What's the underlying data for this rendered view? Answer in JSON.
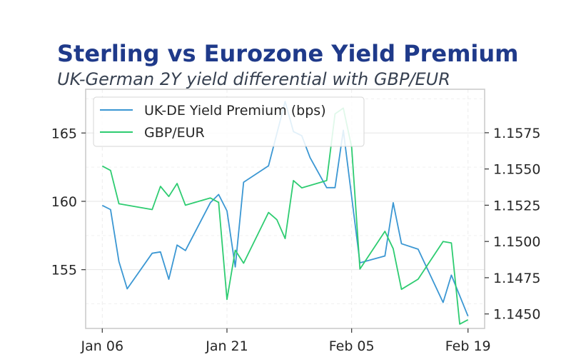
{
  "chart_data": {
    "type": "line",
    "title": "Sterling vs Eurozone Yield Premium",
    "subtitle": "UK-German 2Y yield differential with GBP/EUR",
    "x_tick_labels": [
      "Jan 06",
      "Jan 21",
      "Feb 05",
      "Feb 19"
    ],
    "x_tick_days": [
      0,
      15,
      30,
      44
    ],
    "x_range_days": [
      -2,
      46
    ],
    "y_left": {
      "range": [
        150.7,
        168.2
      ],
      "ticks": [
        155,
        160,
        165
      ]
    },
    "y_right": {
      "range": [
        1.144,
        1.1605
      ],
      "ticks": [
        "1.1450",
        "1.1475",
        "1.1500",
        "1.1525",
        "1.1550",
        "1.1575"
      ]
    },
    "grid": true,
    "legend_position": "top-left",
    "series": [
      {
        "name": "UK-DE Yield Premium (bps)",
        "axis": "left",
        "color": "#3b97d3",
        "points": [
          [
            0,
            159.7
          ],
          [
            1,
            159.4
          ],
          [
            2,
            155.6
          ],
          [
            3,
            153.6
          ],
          [
            6,
            156.2
          ],
          [
            7,
            156.3
          ],
          [
            8,
            154.3
          ],
          [
            9,
            156.8
          ],
          [
            10,
            156.4
          ],
          [
            13,
            159.9
          ],
          [
            14,
            160.5
          ],
          [
            15,
            159.3
          ],
          [
            16,
            155.2
          ],
          [
            17,
            161.4
          ],
          [
            20,
            162.6
          ],
          [
            22,
            167.3
          ],
          [
            23,
            165.1
          ],
          [
            24,
            164.8
          ],
          [
            25,
            163.2
          ],
          [
            27,
            161.0
          ],
          [
            28,
            161.0
          ],
          [
            29,
            165.2
          ],
          [
            31,
            155.5
          ],
          [
            34,
            156.0
          ],
          [
            35,
            159.9
          ],
          [
            36,
            156.9
          ],
          [
            38,
            156.5
          ],
          [
            41,
            152.6
          ],
          [
            42,
            154.6
          ],
          [
            44,
            151.6
          ]
        ]
      },
      {
        "name": "GBP/EUR",
        "axis": "right",
        "color": "#2ecc71",
        "points": [
          [
            0,
            1.1552
          ],
          [
            1,
            1.1549
          ],
          [
            2,
            1.1526
          ],
          [
            6,
            1.1522
          ],
          [
            7,
            1.1538
          ],
          [
            8,
            1.1531
          ],
          [
            9,
            1.154
          ],
          [
            10,
            1.1525
          ],
          [
            13,
            1.153
          ],
          [
            14,
            1.1527
          ],
          [
            15,
            1.146
          ],
          [
            16,
            1.1494
          ],
          [
            17,
            1.1485
          ],
          [
            20,
            1.152
          ],
          [
            21,
            1.1515
          ],
          [
            22,
            1.1502
          ],
          [
            23,
            1.1542
          ],
          [
            24,
            1.1537
          ],
          [
            27,
            1.1542
          ],
          [
            28,
            1.1588
          ],
          [
            29,
            1.1592
          ],
          [
            30,
            1.1565
          ],
          [
            31,
            1.1481
          ],
          [
            34,
            1.1507
          ],
          [
            35,
            1.1495
          ],
          [
            36,
            1.1467
          ],
          [
            38,
            1.1474
          ],
          [
            41,
            1.15
          ],
          [
            42,
            1.1499
          ],
          [
            43,
            1.1443
          ],
          [
            44,
            1.1446
          ]
        ]
      }
    ]
  }
}
